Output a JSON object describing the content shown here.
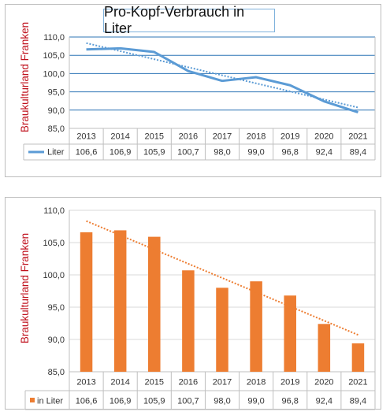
{
  "chart_data": [
    {
      "type": "line",
      "title": "Pro-Kopf-Verbrauch in Liter",
      "ylabel": "Braukulturland Franken",
      "categories": [
        "2013",
        "2014",
        "2015",
        "2016",
        "2017",
        "2018",
        "2019",
        "2020",
        "2021"
      ],
      "series": [
        {
          "name": "Liter",
          "values": [
            106.6,
            106.9,
            105.9,
            100.7,
            98.0,
            99.0,
            96.8,
            92.4,
            89.4
          ],
          "labels": [
            "106,6",
            "106,9",
            "105,9",
            "100,7",
            "98,0",
            "99,0",
            "96,8",
            "92,4",
            "89,4"
          ],
          "color": "#5b9bd5",
          "trendline": "linear dotted"
        }
      ],
      "yticks": [
        "110,0",
        "105,0",
        "100,0",
        "95,0",
        "90,0",
        "85,0"
      ],
      "ylim": [
        85,
        110
      ],
      "grid": true,
      "legend": "data table"
    },
    {
      "type": "bar",
      "title": "",
      "ylabel": "Braukulturland Franken",
      "categories": [
        "2013",
        "2014",
        "2015",
        "2016",
        "2017",
        "2018",
        "2019",
        "2020",
        "2021"
      ],
      "series": [
        {
          "name": "in Liter",
          "values": [
            106.6,
            106.9,
            105.9,
            100.7,
            98.0,
            99.0,
            96.8,
            92.4,
            89.4
          ],
          "labels": [
            "106,6",
            "106,9",
            "105,9",
            "100,7",
            "98,0",
            "99,0",
            "96,8",
            "92,4",
            "89,4"
          ],
          "color": "#ed7d31",
          "trendline": "linear dotted"
        }
      ],
      "yticks": [
        "110,0",
        "105,0",
        "100,0",
        "95,0",
        "90,0",
        "85,0"
      ],
      "ylim": [
        85,
        110
      ],
      "grid": true,
      "legend": "data table"
    }
  ]
}
